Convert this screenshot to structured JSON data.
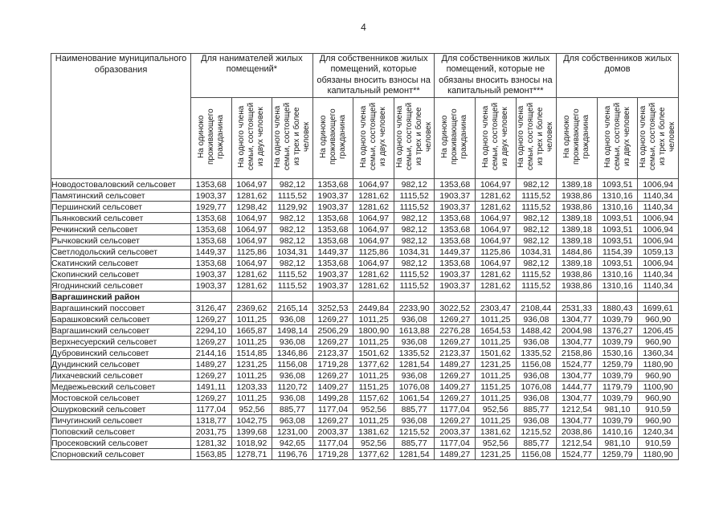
{
  "page": {
    "number": "4"
  },
  "colors": {
    "border": "#4a4a4a",
    "text": "#1a1a1a",
    "background": "#ffffff"
  },
  "table": {
    "name_header": "Наименование муниципального образования",
    "groups": [
      {
        "label": "Для нанимателей жилых помещений*"
      },
      {
        "label": "Для собственников жилых помещений, которые обязаны вносить взносы на капитальный ремонт**"
      },
      {
        "label": "Для собственников жилых помещений, которые не обязаны вносить взносы на капитальный ремонт***"
      },
      {
        "label": "Для собственников жилых домов"
      }
    ],
    "subheaders": [
      "На одиноко проживающего гражданина",
      "На одного члена семьи, состоящей из двух человек",
      "На одного члена семьи, состоящей из трех и более человек"
    ],
    "rows": [
      {
        "type": "data",
        "name": "Новодостоваловский сельсовет",
        "values": [
          "1353,68",
          "1064,97",
          "982,12",
          "1353,68",
          "1064,97",
          "982,12",
          "1353,68",
          "1064,97",
          "982,12",
          "1389,18",
          "1093,51",
          "1006,94"
        ]
      },
      {
        "type": "data",
        "name": "Памятинский сельсовет",
        "values": [
          "1903,37",
          "1281,62",
          "1115,52",
          "1903,37",
          "1281,62",
          "1115,52",
          "1903,37",
          "1281,62",
          "1115,52",
          "1938,86",
          "1310,16",
          "1140,34"
        ]
      },
      {
        "type": "data",
        "name": "Першинский сельсовет",
        "values": [
          "1929,77",
          "1298,42",
          "1129,92",
          "1903,37",
          "1281,62",
          "1115,52",
          "1903,37",
          "1281,62",
          "1115,52",
          "1938,86",
          "1310,16",
          "1140,34"
        ]
      },
      {
        "type": "data",
        "name": "Пьянковский сельсовет",
        "values": [
          "1353,68",
          "1064,97",
          "982,12",
          "1353,68",
          "1064,97",
          "982,12",
          "1353,68",
          "1064,97",
          "982,12",
          "1389,18",
          "1093,51",
          "1006,94"
        ]
      },
      {
        "type": "data",
        "name": "Речкинский сельсовет",
        "values": [
          "1353,68",
          "1064,97",
          "982,12",
          "1353,68",
          "1064,97",
          "982,12",
          "1353,68",
          "1064,97",
          "982,12",
          "1389,18",
          "1093,51",
          "1006,94"
        ]
      },
      {
        "type": "data",
        "name": "Рычковский сельсовет",
        "values": [
          "1353,68",
          "1064,97",
          "982,12",
          "1353,68",
          "1064,97",
          "982,12",
          "1353,68",
          "1064,97",
          "982,12",
          "1389,18",
          "1093,51",
          "1006,94"
        ]
      },
      {
        "type": "data",
        "name": "Светлодольский сельсовет",
        "values": [
          "1449,37",
          "1125,86",
          "1034,31",
          "1449,37",
          "1125,86",
          "1034,31",
          "1449,37",
          "1125,86",
          "1034,31",
          "1484,86",
          "1154,39",
          "1059,13"
        ]
      },
      {
        "type": "data",
        "name": "Скатинский сельсовет",
        "values": [
          "1353,68",
          "1064,97",
          "982,12",
          "1353,68",
          "1064,97",
          "982,12",
          "1353,68",
          "1064,97",
          "982,12",
          "1389,18",
          "1093,51",
          "1006,94"
        ]
      },
      {
        "type": "data",
        "name": "Скопинский сельсовет",
        "values": [
          "1903,37",
          "1281,62",
          "1115,52",
          "1903,37",
          "1281,62",
          "1115,52",
          "1903,37",
          "1281,62",
          "1115,52",
          "1938,86",
          "1310,16",
          "1140,34"
        ]
      },
      {
        "type": "data",
        "name": "Ягоднинский сельсовет",
        "values": [
          "1903,37",
          "1281,62",
          "1115,52",
          "1903,37",
          "1281,62",
          "1115,52",
          "1903,37",
          "1281,62",
          "1115,52",
          "1938,86",
          "1310,16",
          "1140,34"
        ]
      },
      {
        "type": "section",
        "name": "Варгашинский район",
        "values": [
          "",
          "",
          "",
          "",
          "",
          "",
          "",
          "",
          "",
          "",
          "",
          ""
        ]
      },
      {
        "type": "data",
        "name": "Варгашинский поссовет",
        "values": [
          "3126,47",
          "2369,62",
          "2165,14",
          "3252,53",
          "2449,84",
          "2233,90",
          "3022,52",
          "2303,47",
          "2108,44",
          "2531,33",
          "1880,43",
          "1699,61"
        ]
      },
      {
        "type": "data",
        "name": "Барашковский сельсовет",
        "values": [
          "1269,27",
          "1011,25",
          "936,08",
          "1269,27",
          "1011,25",
          "936,08",
          "1269,27",
          "1011,25",
          "936,08",
          "1304,77",
          "1039,79",
          "960,90"
        ]
      },
      {
        "type": "data",
        "name": "Варгашинский сельсовет",
        "values": [
          "2294,10",
          "1665,87",
          "1498,14",
          "2506,29",
          "1800,90",
          "1613,88",
          "2276,28",
          "1654,53",
          "1488,42",
          "2004,98",
          "1376,27",
          "1206,45"
        ]
      },
      {
        "type": "data",
        "name": "Верхнесуерский сельсовет",
        "values": [
          "1269,27",
          "1011,25",
          "936,08",
          "1269,27",
          "1011,25",
          "936,08",
          "1269,27",
          "1011,25",
          "936,08",
          "1304,77",
          "1039,79",
          "960,90"
        ]
      },
      {
        "type": "data",
        "name": "Дубровинский сельсовет",
        "values": [
          "2144,16",
          "1514,85",
          "1346,86",
          "2123,37",
          "1501,62",
          "1335,52",
          "2123,37",
          "1501,62",
          "1335,52",
          "2158,86",
          "1530,16",
          "1360,34"
        ]
      },
      {
        "type": "data",
        "name": "Дундинский сельсовет",
        "values": [
          "1489,27",
          "1231,25",
          "1156,08",
          "1719,28",
          "1377,62",
          "1281,54",
          "1489,27",
          "1231,25",
          "1156,08",
          "1524,77",
          "1259,79",
          "1180,90"
        ]
      },
      {
        "type": "data",
        "name": "Лихачевский сельсовет",
        "values": [
          "1269,27",
          "1011,25",
          "936,08",
          "1269,27",
          "1011,25",
          "936,08",
          "1269,27",
          "1011,25",
          "936,08",
          "1304,77",
          "1039,79",
          "960,90"
        ]
      },
      {
        "type": "data",
        "name": "Медвежьевский сельсовет",
        "values": [
          "1491,11",
          "1203,33",
          "1120,72",
          "1409,27",
          "1151,25",
          "1076,08",
          "1409,27",
          "1151,25",
          "1076,08",
          "1444,77",
          "1179,79",
          "1100,90"
        ]
      },
      {
        "type": "data",
        "name": "Мостовской сельсовет",
        "values": [
          "1269,27",
          "1011,25",
          "936,08",
          "1499,28",
          "1157,62",
          "1061,54",
          "1269,27",
          "1011,25",
          "936,08",
          "1304,77",
          "1039,79",
          "960,90"
        ]
      },
      {
        "type": "data",
        "name": "Ошурковский сельсовет",
        "values": [
          "1177,04",
          "952,56",
          "885,77",
          "1177,04",
          "952,56",
          "885,77",
          "1177,04",
          "952,56",
          "885,77",
          "1212,54",
          "981,10",
          "910,59"
        ]
      },
      {
        "type": "data",
        "name": "Пичугинский сельсовет",
        "values": [
          "1318,77",
          "1042,75",
          "963,08",
          "1269,27",
          "1011,25",
          "936,08",
          "1269,27",
          "1011,25",
          "936,08",
          "1304,77",
          "1039,79",
          "960,90"
        ]
      },
      {
        "type": "data",
        "name": "Поповский сельсовет",
        "values": [
          "2031,75",
          "1399,68",
          "1231,00",
          "2003,37",
          "1381,62",
          "1215,52",
          "2003,37",
          "1381,62",
          "1215,52",
          "2038,86",
          "1410,16",
          "1240,34"
        ]
      },
      {
        "type": "data",
        "name": "Просековский сельсовет",
        "values": [
          "1281,32",
          "1018,92",
          "942,65",
          "1177,04",
          "952,56",
          "885,77",
          "1177,04",
          "952,56",
          "885,77",
          "1212,54",
          "981,10",
          "910,59"
        ]
      },
      {
        "type": "data",
        "name": "Спорновский сельсовет",
        "values": [
          "1563,85",
          "1278,71",
          "1196,76",
          "1719,28",
          "1377,62",
          "1281,54",
          "1489,27",
          "1231,25",
          "1156,08",
          "1524,77",
          "1259,79",
          "1180,90"
        ]
      }
    ]
  }
}
